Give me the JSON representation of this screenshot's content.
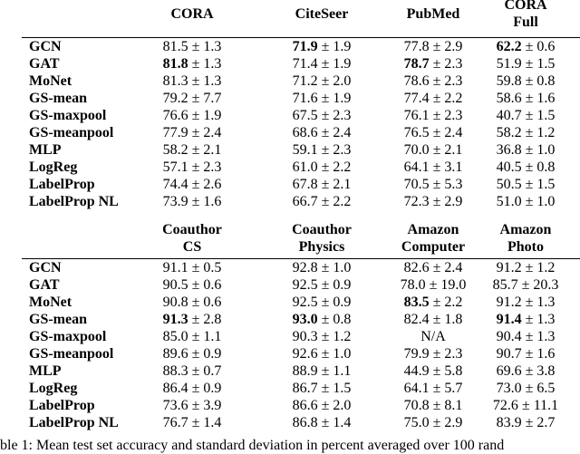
{
  "tables": [
    {
      "headers": [
        [
          "CORA"
        ],
        [
          "CiteSeer"
        ],
        [
          "PubMed"
        ],
        [
          "CORA",
          "Full"
        ]
      ],
      "rows": [
        {
          "name": "GCN",
          "cells": [
            {
              "m": "81.5",
              "s": "± 1.3"
            },
            {
              "m": "71.9",
              "s": "± 1.9",
              "b": true
            },
            {
              "m": "77.8",
              "s": "± 2.9"
            },
            {
              "m": "62.2",
              "s": "± 0.6",
              "b": true
            }
          ]
        },
        {
          "name": "GAT",
          "cells": [
            {
              "m": "81.8",
              "s": "± 1.3",
              "b": true
            },
            {
              "m": "71.4",
              "s": "± 1.9"
            },
            {
              "m": "78.7",
              "s": "± 2.3",
              "b": true
            },
            {
              "m": "51.9",
              "s": "± 1.5"
            }
          ]
        },
        {
          "name": "MoNet",
          "cells": [
            {
              "m": "81.3",
              "s": "± 1.3"
            },
            {
              "m": "71.2",
              "s": "± 2.0"
            },
            {
              "m": "78.6",
              "s": "± 2.3"
            },
            {
              "m": "59.8",
              "s": "± 0.8"
            }
          ]
        },
        {
          "name": "GS-mean",
          "cells": [
            {
              "m": "79.2",
              "s": "± 7.7"
            },
            {
              "m": "71.6",
              "s": "± 1.9"
            },
            {
              "m": "77.4",
              "s": "± 2.2"
            },
            {
              "m": "58.6",
              "s": "± 1.6"
            }
          ]
        },
        {
          "name": "GS-maxpool",
          "cells": [
            {
              "m": "76.6",
              "s": "± 1.9"
            },
            {
              "m": "67.5",
              "s": "± 2.3"
            },
            {
              "m": "76.1",
              "s": "± 2.3"
            },
            {
              "m": "40.7",
              "s": "± 1.5"
            }
          ]
        },
        {
          "name": "GS-meanpool",
          "cells": [
            {
              "m": "77.9",
              "s": "± 2.4"
            },
            {
              "m": "68.6",
              "s": "± 2.4"
            },
            {
              "m": "76.5",
              "s": "± 2.4"
            },
            {
              "m": "58.2",
              "s": "± 1.2"
            }
          ]
        },
        {
          "name": "MLP",
          "cells": [
            {
              "m": "58.2",
              "s": "± 2.1"
            },
            {
              "m": "59.1",
              "s": "± 2.3"
            },
            {
              "m": "70.0",
              "s": "± 2.1"
            },
            {
              "m": "36.8",
              "s": "± 1.0"
            }
          ]
        },
        {
          "name": "LogReg",
          "cells": [
            {
              "m": "57.1",
              "s": "± 2.3"
            },
            {
              "m": "61.0",
              "s": "± 2.2"
            },
            {
              "m": "64.1",
              "s": "± 3.1"
            },
            {
              "m": "40.5",
              "s": "± 0.8"
            }
          ]
        },
        {
          "name": "LabelProp",
          "cells": [
            {
              "m": "74.4",
              "s": "± 2.6"
            },
            {
              "m": "67.8",
              "s": "± 2.1"
            },
            {
              "m": "70.5",
              "s": "± 5.3"
            },
            {
              "m": "50.5",
              "s": "± 1.5"
            }
          ]
        },
        {
          "name": "LabelProp NL",
          "cells": [
            {
              "m": "73.9",
              "s": "± 1.6"
            },
            {
              "m": "66.7",
              "s": "± 2.2"
            },
            {
              "m": "72.3",
              "s": "± 2.9"
            },
            {
              "m": "51.0",
              "s": "± 1.0"
            }
          ]
        }
      ]
    },
    {
      "headers": [
        [
          "Coauthor",
          "CS"
        ],
        [
          "Coauthor",
          "Physics"
        ],
        [
          "Amazon",
          "Computer"
        ],
        [
          "Amazon",
          "Photo"
        ]
      ],
      "rows": [
        {
          "name": "GCN",
          "cells": [
            {
              "m": "91.1",
              "s": "± 0.5"
            },
            {
              "m": "92.8",
              "s": "± 1.0"
            },
            {
              "m": "82.6",
              "s": "± 2.4"
            },
            {
              "m": "91.2",
              "s": "± 1.2"
            }
          ]
        },
        {
          "name": "GAT",
          "cells": [
            {
              "m": "90.5",
              "s": "± 0.6"
            },
            {
              "m": "92.5",
              "s": "± 0.9"
            },
            {
              "m": "78.0",
              "s": "± 19.0"
            },
            {
              "m": "85.7",
              "s": "± 20.3"
            }
          ]
        },
        {
          "name": "MoNet",
          "cells": [
            {
              "m": "90.8",
              "s": "± 0.6"
            },
            {
              "m": "92.5",
              "s": "± 0.9"
            },
            {
              "m": "83.5",
              "s": "± 2.2",
              "b": true
            },
            {
              "m": "91.2",
              "s": "± 1.3"
            }
          ]
        },
        {
          "name": "GS-mean",
          "cells": [
            {
              "m": "91.3",
              "s": "± 2.8",
              "b": true
            },
            {
              "m": "93.0",
              "s": "± 0.8",
              "b": true
            },
            {
              "m": "82.4",
              "s": "± 1.8"
            },
            {
              "m": "91.4",
              "s": "± 1.3",
              "b": true
            }
          ]
        },
        {
          "name": "GS-maxpool",
          "cells": [
            {
              "m": "85.0",
              "s": "± 1.1"
            },
            {
              "m": "90.3",
              "s": "± 1.2"
            },
            {
              "m": "N/A"
            },
            {
              "m": "90.4",
              "s": "± 1.3"
            }
          ]
        },
        {
          "name": "GS-meanpool",
          "cells": [
            {
              "m": "89.6",
              "s": "± 0.9"
            },
            {
              "m": "92.6",
              "s": "± 1.0"
            },
            {
              "m": "79.9",
              "s": "± 2.3"
            },
            {
              "m": "90.7",
              "s": "± 1.6"
            }
          ]
        },
        {
          "name": "MLP",
          "cells": [
            {
              "m": "88.3",
              "s": "± 0.7"
            },
            {
              "m": "88.9",
              "s": "± 1.1"
            },
            {
              "m": "44.9",
              "s": "± 5.8"
            },
            {
              "m": "69.6",
              "s": "± 3.8"
            }
          ]
        },
        {
          "name": "LogReg",
          "cells": [
            {
              "m": "86.4",
              "s": "± 0.9"
            },
            {
              "m": "86.7",
              "s": "± 1.5"
            },
            {
              "m": "64.1",
              "s": "± 5.7"
            },
            {
              "m": "73.0",
              "s": "± 6.5"
            }
          ]
        },
        {
          "name": "LabelProp",
          "cells": [
            {
              "m": "73.6",
              "s": "± 3.9"
            },
            {
              "m": "86.6",
              "s": "± 2.0"
            },
            {
              "m": "70.8",
              "s": "± 8.1"
            },
            {
              "m": "72.6",
              "s": "± 11.1"
            }
          ]
        },
        {
          "name": "LabelProp NL",
          "cells": [
            {
              "m": "76.7",
              "s": "± 1.4"
            },
            {
              "m": "86.8",
              "s": "± 1.4"
            },
            {
              "m": "75.0",
              "s": "± 2.9"
            },
            {
              "m": "83.9",
              "s": "± 2.7"
            }
          ]
        }
      ]
    }
  ],
  "caption": "ble 1:  Mean test set accuracy and standard deviation in percent averaged over 100 rand"
}
